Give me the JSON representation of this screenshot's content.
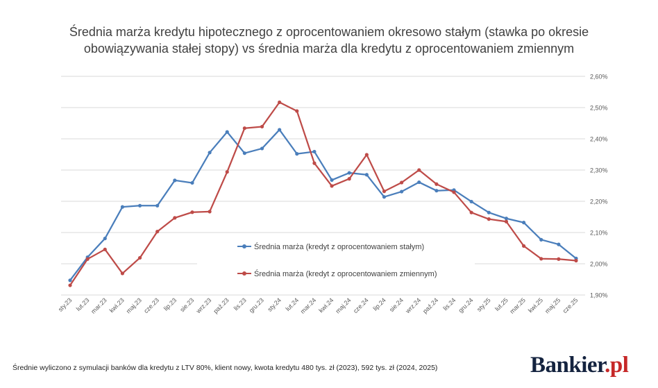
{
  "chart_data": {
    "type": "line",
    "title_lines": [
      "Średnia marża kredytu hipotecznego z oprocentowaniem okresowo stałym (stawka po okresie",
      "obowiązywania stałej stopy) vs średnia marża dla kredytu z oprocentowaniem zmiennym"
    ],
    "categories": [
      "sty.23",
      "lut.23",
      "mar.23",
      "kwi.23",
      "maj.23",
      "cze.23",
      "lip.23",
      "sie.23",
      "wrz.23",
      "paź.23",
      "lis.23",
      "gru.23",
      "sty.24",
      "lut.24",
      "mar.24",
      "kwi.24",
      "maj.24",
      "cze.24",
      "lip.24",
      "sie.24",
      "wrz.24",
      "paź.24",
      "lis.24",
      "gru.24",
      "sty.25",
      "lut.25",
      "mar.25",
      "kwi.25",
      "maj.25",
      "cze.25"
    ],
    "series": [
      {
        "name": "Średnia marża (kredyt z oprocentowaniem stałym)",
        "color": "#4a7ebb",
        "values": [
          1.947,
          2.021,
          2.081,
          2.182,
          2.186,
          2.186,
          2.267,
          2.259,
          2.356,
          2.422,
          2.354,
          2.369,
          2.429,
          2.352,
          2.359,
          2.268,
          2.291,
          2.285,
          2.214,
          2.231,
          2.261,
          2.234,
          2.236,
          2.199,
          2.164,
          2.145,
          2.132,
          2.077,
          2.062,
          2.017
        ]
      },
      {
        "name": "Średnia marża (kredyt z oprocentowaniem zmiennym)",
        "color": "#be4b48",
        "values": [
          1.931,
          2.015,
          2.046,
          1.969,
          2.019,
          2.103,
          2.147,
          2.165,
          2.167,
          2.294,
          2.434,
          2.439,
          2.517,
          2.489,
          2.322,
          2.249,
          2.272,
          2.349,
          2.232,
          2.26,
          2.3,
          2.255,
          2.229,
          2.164,
          2.143,
          2.135,
          2.057,
          2.016,
          2.015,
          2.01
        ]
      }
    ],
    "y_ticks": [
      "1,90%",
      "2,00%",
      "2,10%",
      "2,20%",
      "2,30%",
      "2,40%",
      "2,50%",
      "2,60%"
    ],
    "ylim": [
      1.9,
      2.6
    ],
    "y_axis_side": "right",
    "grid": true,
    "legend_position": "center-inside"
  },
  "footnote": "Średnie wyliczono z symulacji banków dla kredytu z LTV 80%, klient nowy, kwota kredytu 480 tys. zł (2023), 592 tys. zł (2024, 2025)",
  "logo": {
    "text": "Bankier",
    "suffix": ".pl",
    "suffix_color": "#c62828"
  }
}
